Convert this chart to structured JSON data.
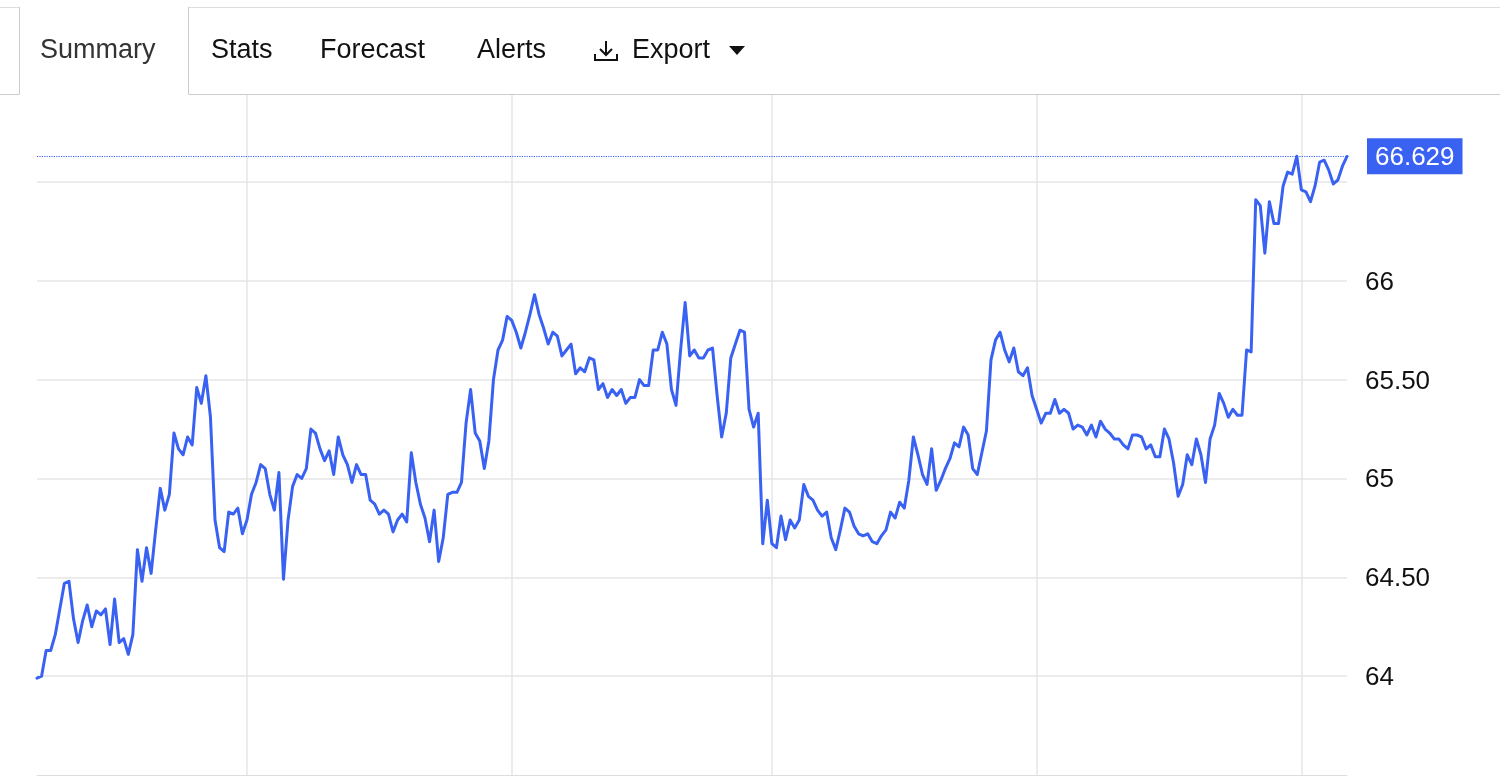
{
  "chart_data": {
    "type": "line",
    "color": "#3a62f2",
    "annotations": [
      "Summary",
      "Stats",
      "Forecast",
      "Alerts",
      "Export"
    ],
    "categories": [
      null,
      null,
      null,
      null,
      null,
      null,
      null,
      null,
      null,
      null,
      null,
      null,
      null,
      null,
      null,
      null,
      null,
      null,
      null,
      null,
      null,
      null,
      null,
      null,
      null,
      null,
      null,
      null,
      null,
      null,
      null,
      null,
      null,
      null,
      null,
      null,
      null,
      null,
      null,
      null,
      null,
      null,
      null,
      null,
      null,
      null,
      null,
      null,
      null,
      null,
      null,
      null,
      null,
      null,
      null,
      null,
      null,
      null,
      null,
      null,
      null,
      null,
      null,
      null,
      null,
      null,
      null,
      null,
      null,
      null,
      null,
      null,
      null,
      null,
      null,
      null,
      null,
      null,
      null,
      null,
      null,
      null,
      null,
      null,
      null,
      null,
      null,
      null,
      null,
      null,
      null,
      null,
      null,
      null,
      null,
      null,
      null,
      null,
      null,
      null,
      null,
      null,
      null,
      null,
      null,
      null,
      null,
      null,
      null,
      null,
      null,
      null,
      null,
      null,
      null,
      null,
      null,
      null,
      null,
      null,
      null,
      null,
      null,
      null,
      null,
      null,
      null,
      null,
      null,
      null,
      null,
      null,
      null,
      null,
      null,
      null,
      null,
      null,
      null,
      null,
      null,
      null,
      null,
      null,
      null,
      null,
      null,
      null,
      null,
      null,
      null,
      null,
      null,
      null,
      null,
      null,
      null,
      null,
      null,
      null,
      null,
      null,
      null,
      null,
      null,
      null,
      null,
      null,
      null,
      null,
      null,
      null,
      null,
      null,
      null,
      null,
      null,
      null,
      null,
      null,
      null,
      null,
      null,
      null,
      null,
      null,
      null,
      null,
      null,
      null,
      null,
      null,
      null,
      null,
      null,
      null,
      null,
      null,
      null,
      null,
      null,
      null,
      null,
      null,
      null,
      null,
      null,
      null,
      null,
      null,
      null,
      null,
      null,
      null,
      null,
      null,
      null,
      null,
      null,
      null,
      null,
      null,
      null,
      null,
      null,
      null,
      null,
      null,
      null,
      null,
      null,
      null,
      null,
      null,
      null,
      null,
      null,
      null,
      null,
      null,
      null,
      null,
      null,
      null,
      null,
      null,
      null,
      null,
      null,
      null,
      null,
      null,
      null,
      null,
      null,
      null,
      null,
      null,
      null,
      null,
      null,
      null,
      null,
      null,
      null,
      null,
      null,
      null,
      null,
      null,
      null,
      null,
      null,
      null,
      null,
      null,
      null,
      null,
      null,
      null,
      null,
      null,
      null,
      null,
      null,
      null,
      null,
      null
    ],
    "values": [
      63.99,
      64.0,
      64.13,
      64.13,
      64.21,
      64.34,
      64.47,
      64.48,
      64.29,
      64.17,
      64.28,
      64.36,
      64.25,
      64.33,
      64.31,
      64.34,
      64.16,
      64.39,
      64.17,
      64.19,
      64.11,
      64.21,
      64.64,
      64.48,
      64.65,
      64.52,
      64.74,
      64.95,
      64.84,
      64.92,
      65.23,
      65.15,
      65.12,
      65.21,
      65.17,
      65.46,
      65.38,
      65.52,
      65.31,
      64.79,
      64.65,
      64.63,
      64.83,
      64.82,
      64.85,
      64.72,
      64.79,
      64.92,
      64.98,
      65.07,
      65.05,
      64.92,
      64.84,
      65.03,
      64.49,
      64.79,
      64.96,
      65.02,
      65.0,
      65.05,
      65.25,
      65.23,
      65.15,
      65.09,
      65.14,
      65.02,
      65.21,
      65.12,
      65.07,
      64.98,
      65.07,
      65.02,
      65.02,
      64.89,
      64.87,
      64.82,
      64.84,
      64.82,
      64.73,
      64.79,
      64.82,
      64.78,
      65.13,
      64.98,
      64.87,
      64.8,
      64.68,
      64.84,
      64.58,
      64.7,
      64.92,
      64.93,
      64.93,
      64.98,
      65.28,
      65.45,
      65.23,
      65.19,
      65.05,
      65.19,
      65.5,
      65.65,
      65.7,
      65.82,
      65.8,
      65.74,
      65.66,
      65.74,
      65.83,
      65.93,
      65.83,
      65.76,
      65.68,
      65.74,
      65.72,
      65.62,
      65.65,
      65.68,
      65.53,
      65.56,
      65.54,
      65.61,
      65.6,
      65.45,
      65.48,
      65.41,
      65.45,
      65.42,
      65.45,
      65.38,
      65.41,
      65.41,
      65.5,
      65.47,
      65.47,
      65.65,
      65.65,
      65.74,
      65.68,
      65.45,
      65.37,
      65.65,
      65.89,
      65.62,
      65.65,
      65.61,
      65.61,
      65.65,
      65.66,
      65.42,
      65.21,
      65.33,
      65.61,
      65.68,
      65.75,
      65.74,
      65.35,
      65.26,
      65.33,
      64.67,
      64.89,
      64.67,
      64.65,
      64.81,
      64.69,
      64.79,
      64.75,
      64.79,
      64.97,
      64.91,
      64.89,
      64.84,
      64.81,
      64.83,
      64.7,
      64.64,
      64.74,
      64.85,
      64.83,
      64.76,
      64.72,
      64.71,
      64.72,
      64.68,
      64.67,
      64.71,
      64.74,
      64.83,
      64.8,
      64.88,
      64.85,
      64.99,
      65.21,
      65.12,
      65.02,
      64.97,
      65.15,
      64.94,
      64.99,
      65.05,
      65.1,
      65.18,
      65.16,
      65.26,
      65.22,
      65.05,
      65.02,
      65.13,
      65.24,
      65.6,
      65.7,
      65.74,
      65.65,
      65.59,
      65.66,
      65.54,
      65.52,
      65.56,
      65.42,
      65.35,
      65.28,
      65.33,
      65.33,
      65.4,
      65.33,
      65.35,
      65.33,
      65.25,
      65.27,
      65.26,
      65.22,
      65.27,
      65.21,
      65.29,
      65.25,
      65.23,
      65.2,
      65.2,
      65.17,
      65.15,
      65.22,
      65.22,
      65.21,
      65.15,
      65.17,
      65.11,
      65.11,
      65.25,
      65.2,
      65.08,
      64.91,
      64.97,
      65.12,
      65.07,
      65.2,
      65.12,
      64.98,
      65.2,
      65.27,
      65.43,
      65.38,
      65.31,
      65.35,
      65.32,
      65.32,
      65.65,
      65.64,
      66.41,
      66.38,
      66.14,
      66.4,
      66.29,
      66.29,
      66.48,
      66.55,
      66.54,
      66.63,
      66.46,
      66.45,
      66.4,
      66.48,
      66.6,
      66.61,
      66.56,
      66.49,
      66.51,
      66.58,
      66.629
    ],
    "ylim": [
      63.5,
      66.94
    ],
    "yticks": [
      64,
      {
        "value": 64.5,
        "label": "64.50"
      },
      65,
      {
        "value": 65.5,
        "label": "65.50"
      },
      66,
      {
        "value": 66.5,
        "label": null
      }
    ],
    "ref_lines": [
      {
        "axis": "y",
        "value": 66.629,
        "label": "66.629",
        "color": "#3a62f2",
        "line_style": "dotted"
      }
    ],
    "grid": true,
    "line_style": "solid",
    "tick_labels": "y"
  }
}
